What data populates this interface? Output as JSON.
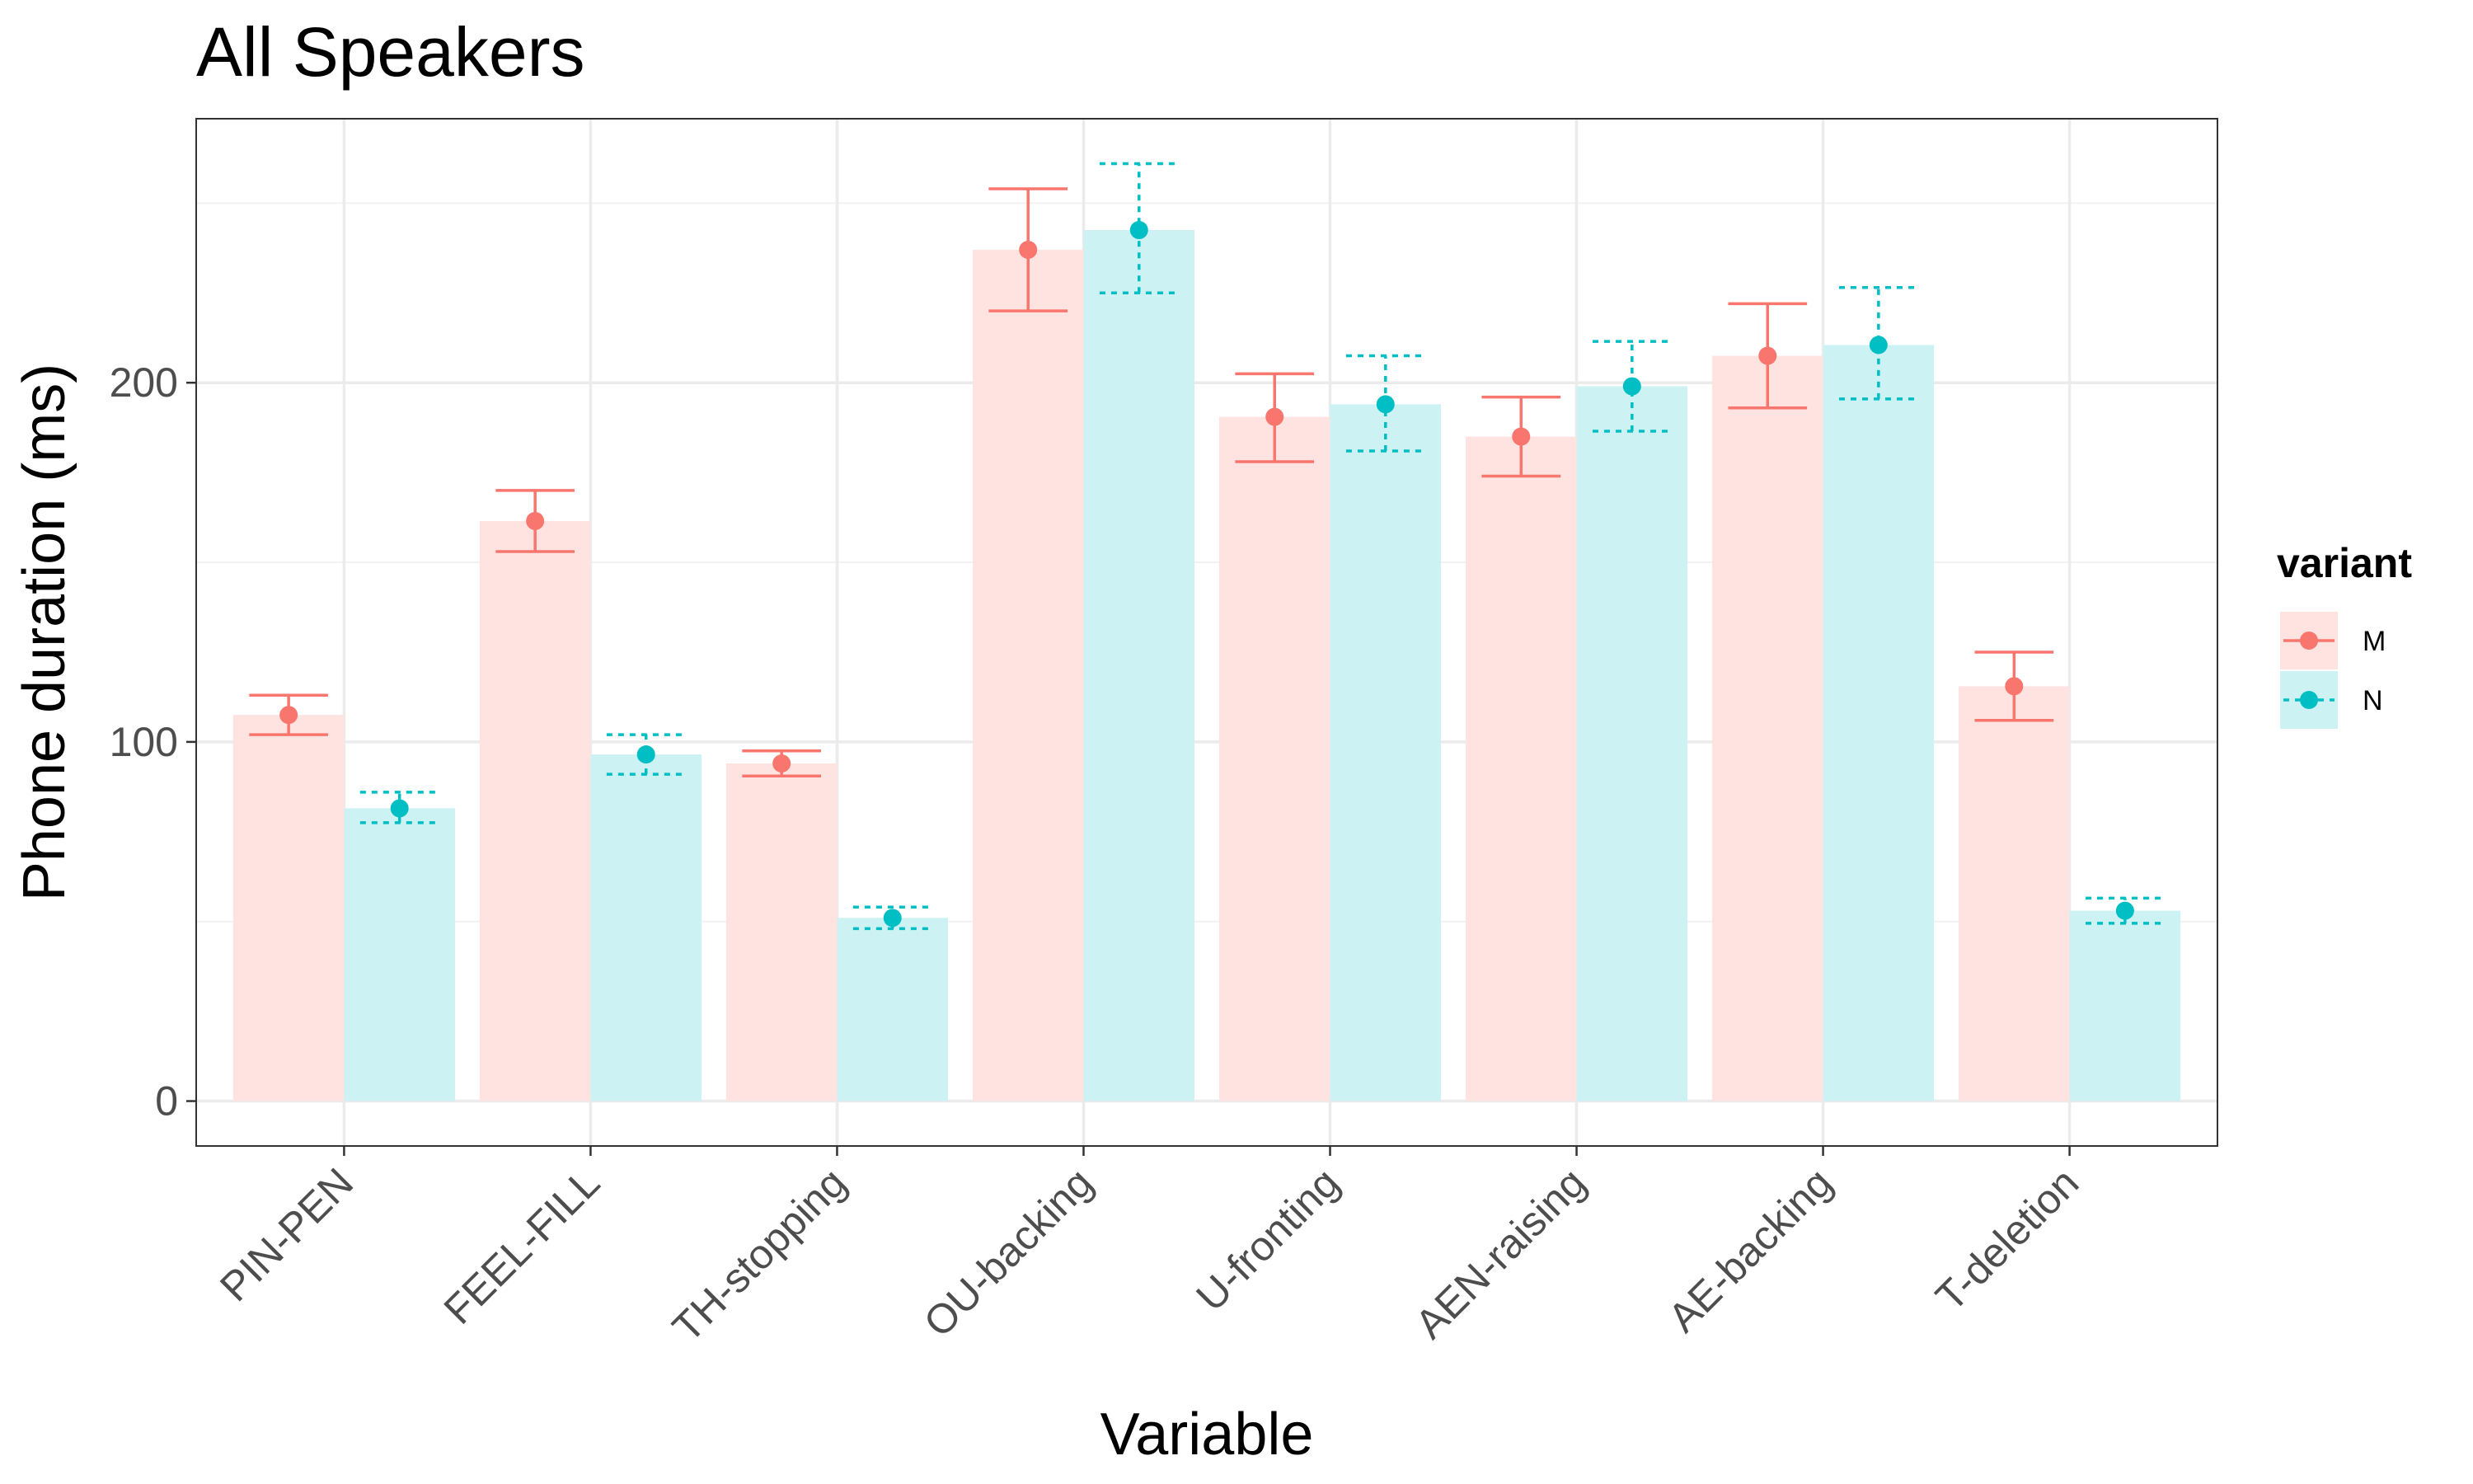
{
  "chart_data": {
    "type": "bar",
    "title": "All Speakers",
    "xlabel": "Variable",
    "ylabel": "Phone duration (ms)",
    "ylim": [
      -12.5,
      273.5
    ],
    "yticks": [
      0,
      100,
      200
    ],
    "grid": true,
    "categories": [
      "PIN-PEN",
      "FEEL-FILL",
      "TH-stopping",
      "OU-backing",
      "U-fronting",
      "AEN-raising",
      "AE-backing",
      "T-deletion"
    ],
    "legend": {
      "title": "variant",
      "position": "right"
    },
    "series": [
      {
        "name": "M",
        "color": "#F8766D",
        "bar_color": "#FEE3E1",
        "errorbar_style": "solid",
        "values": [
          107.5,
          161.5,
          94,
          237,
          190.5,
          185,
          207.5,
          115.5
        ],
        "error_low": [
          102,
          153,
          90.5,
          220,
          178,
          174,
          193,
          106
        ],
        "error_high": [
          113,
          170,
          97.5,
          254,
          202.5,
          196,
          222,
          125
        ]
      },
      {
        "name": "N",
        "color": "#00BFC4",
        "bar_color": "#CCF2F3",
        "errorbar_style": "dashed",
        "values": [
          81.5,
          96.5,
          51,
          242.5,
          194,
          199,
          210.5,
          53
        ],
        "error_low": [
          77.5,
          91,
          48,
          225,
          181,
          186.5,
          195.5,
          49.5
        ],
        "error_high": [
          86,
          102,
          54,
          261,
          207.5,
          211.5,
          226.5,
          56.5
        ]
      }
    ]
  }
}
